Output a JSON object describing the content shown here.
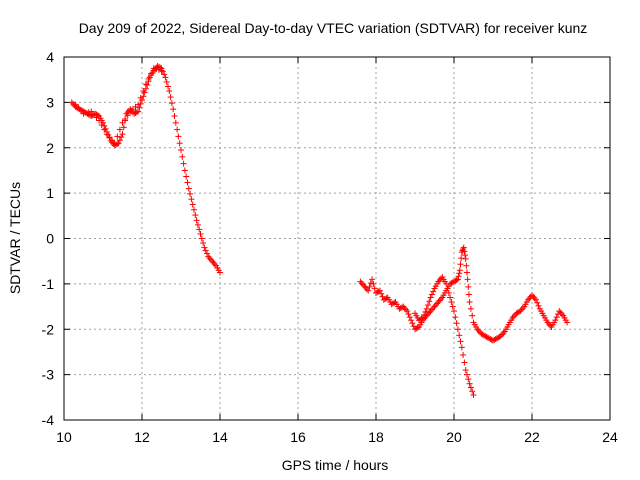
{
  "chart_data": {
    "type": "scatter",
    "title": "Day 209 of 2022, Sidereal Day-to-day VTEC variation (SDTVAR) for receiver kunz",
    "xlabel": "GPS time / hours",
    "ylabel": "SDTVAR / TECUs",
    "xlim": [
      10,
      24
    ],
    "ylim": [
      -4,
      4
    ],
    "xticks": [
      10,
      12,
      14,
      16,
      18,
      20,
      22,
      24
    ],
    "yticks": [
      -4,
      -3,
      -2,
      -1,
      0,
      1,
      2,
      3,
      4
    ],
    "grid": true,
    "marker": "+",
    "color": "#ff0000",
    "series": [
      {
        "name": "segment-1",
        "points": [
          [
            10.2,
            3.0
          ],
          [
            10.3,
            2.9
          ],
          [
            10.4,
            2.85
          ],
          [
            10.5,
            2.8
          ],
          [
            10.6,
            2.75
          ],
          [
            10.7,
            2.7
          ],
          [
            10.8,
            2.75
          ],
          [
            10.9,
            2.7
          ],
          [
            11.0,
            2.55
          ],
          [
            11.1,
            2.35
          ],
          [
            11.2,
            2.15
          ],
          [
            11.3,
            2.05
          ],
          [
            11.4,
            2.1
          ],
          [
            11.5,
            2.3
          ],
          [
            11.6,
            2.75
          ],
          [
            11.7,
            2.85
          ],
          [
            11.8,
            2.75
          ],
          [
            11.9,
            2.8
          ],
          [
            12.0,
            3.05
          ],
          [
            12.1,
            3.3
          ],
          [
            12.2,
            3.55
          ],
          [
            12.3,
            3.7
          ],
          [
            12.4,
            3.8
          ],
          [
            12.5,
            3.75
          ],
          [
            12.6,
            3.55
          ],
          [
            12.7,
            3.25
          ],
          [
            12.8,
            2.85
          ],
          [
            12.9,
            2.4
          ],
          [
            13.0,
            1.95
          ],
          [
            13.1,
            1.5
          ],
          [
            13.2,
            1.1
          ],
          [
            13.3,
            0.75
          ],
          [
            13.4,
            0.4
          ],
          [
            13.5,
            0.1
          ],
          [
            13.6,
            -0.2
          ],
          [
            13.7,
            -0.4
          ],
          [
            13.8,
            -0.5
          ],
          [
            13.9,
            -0.6
          ],
          [
            14.0,
            -0.75
          ]
        ]
      },
      {
        "name": "segment-2",
        "points": [
          [
            17.6,
            -0.95
          ],
          [
            17.7,
            -1.05
          ],
          [
            17.8,
            -1.15
          ],
          [
            17.9,
            -0.9
          ],
          [
            18.0,
            -1.2
          ],
          [
            18.1,
            -1.15
          ],
          [
            18.2,
            -1.35
          ],
          [
            18.3,
            -1.3
          ],
          [
            18.4,
            -1.45
          ],
          [
            18.5,
            -1.4
          ],
          [
            18.6,
            -1.55
          ],
          [
            18.7,
            -1.5
          ],
          [
            18.8,
            -1.6
          ],
          [
            18.9,
            -1.8
          ],
          [
            19.0,
            -2.0
          ],
          [
            19.1,
            -1.95
          ],
          [
            19.2,
            -1.8
          ],
          [
            19.3,
            -1.7
          ],
          [
            19.4,
            -1.6
          ],
          [
            19.5,
            -1.5
          ],
          [
            19.6,
            -1.4
          ],
          [
            19.7,
            -1.3
          ],
          [
            19.8,
            -1.15
          ],
          [
            19.9,
            -1.0
          ],
          [
            20.0,
            -0.95
          ],
          [
            20.1,
            -0.9
          ],
          [
            20.15,
            -0.7
          ],
          [
            20.2,
            -0.3
          ],
          [
            20.25,
            -0.2
          ],
          [
            20.3,
            -0.45
          ],
          [
            20.35,
            -0.9
          ],
          [
            20.4,
            -1.4
          ],
          [
            20.5,
            -1.85
          ],
          [
            20.6,
            -2.0
          ],
          [
            20.7,
            -2.1
          ],
          [
            20.8,
            -2.15
          ],
          [
            20.9,
            -2.2
          ],
          [
            21.0,
            -2.25
          ],
          [
            21.1,
            -2.2
          ],
          [
            21.2,
            -2.15
          ],
          [
            21.3,
            -2.05
          ],
          [
            21.4,
            -1.9
          ],
          [
            21.5,
            -1.75
          ],
          [
            21.6,
            -1.65
          ],
          [
            21.7,
            -1.6
          ],
          [
            21.8,
            -1.5
          ],
          [
            21.9,
            -1.35
          ],
          [
            22.0,
            -1.25
          ],
          [
            22.1,
            -1.35
          ],
          [
            22.2,
            -1.55
          ],
          [
            22.3,
            -1.7
          ],
          [
            22.4,
            -1.85
          ],
          [
            22.5,
            -1.95
          ],
          [
            22.6,
            -1.8
          ],
          [
            22.7,
            -1.6
          ],
          [
            22.8,
            -1.7
          ],
          [
            22.9,
            -1.85
          ]
        ]
      },
      {
        "name": "segment-3",
        "points": [
          [
            19.0,
            -1.65
          ],
          [
            19.1,
            -1.8
          ],
          [
            19.2,
            -1.75
          ],
          [
            19.3,
            -1.55
          ],
          [
            19.4,
            -1.3
          ],
          [
            19.5,
            -1.1
          ],
          [
            19.6,
            -0.95
          ],
          [
            19.7,
            -0.85
          ],
          [
            19.8,
            -1.0
          ],
          [
            19.9,
            -1.3
          ],
          [
            20.0,
            -1.6
          ],
          [
            20.1,
            -2.0
          ],
          [
            20.2,
            -2.4
          ],
          [
            20.3,
            -2.9
          ],
          [
            20.4,
            -3.2
          ],
          [
            20.5,
            -3.45
          ]
        ]
      },
      {
        "name": "segment-4",
        "points": [
          [
            10.3,
            2.95
          ],
          [
            10.5,
            2.75
          ],
          [
            10.7,
            2.8
          ],
          [
            10.9,
            2.6
          ],
          [
            11.1,
            2.3
          ],
          [
            11.3,
            2.1
          ],
          [
            11.5,
            2.55
          ],
          [
            11.7,
            2.8
          ],
          [
            11.9,
            2.95
          ],
          [
            12.1,
            3.4
          ],
          [
            12.3,
            3.75
          ],
          [
            12.5,
            3.7
          ]
        ]
      }
    ]
  }
}
